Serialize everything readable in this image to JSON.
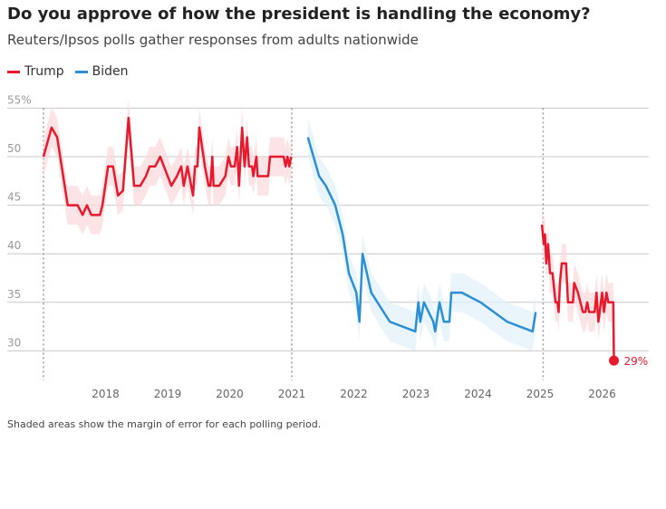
{
  "title": "Do you approve of how the president is handling the economy?",
  "subtitle": "Reuters/Ipsos polls gather responses from adults nationwide",
  "note": "Shaded areas show the margin of error for each polling period.",
  "chart_data": {
    "type": "line",
    "title": "Do you approve of how the president is handling the economy?",
    "ylim": [
      27,
      55
    ],
    "xlim": [
      2016.9,
      2026.5
    ],
    "y_ticks": [
      {
        "v": 55,
        "label": "55%"
      },
      {
        "v": 50,
        "label": "50"
      },
      {
        "v": 45,
        "label": "45"
      },
      {
        "v": 40,
        "label": "40"
      },
      {
        "v": 35,
        "label": "35"
      },
      {
        "v": 30,
        "label": "30"
      }
    ],
    "x_ticks": [
      "2018",
      "2019",
      "2020",
      "2021",
      "2022",
      "2023",
      "2024",
      "2025",
      "2026"
    ],
    "term_markers": [
      2017.0,
      2021.0,
      2025.05
    ],
    "grid": true,
    "legend_placement": "top-left",
    "end_label": "29%",
    "series": [
      {
        "name": "Trump",
        "color": "#e8192c",
        "band": "#fbd9dc",
        "segments": [
          [
            [
              2017.0,
              50
            ],
            [
              2017.13,
              53
            ],
            [
              2017.22,
              52
            ],
            [
              2017.39,
              45
            ],
            [
              2017.55,
              45
            ],
            [
              2017.63,
              44
            ],
            [
              2017.7,
              45
            ],
            [
              2017.77,
              44
            ],
            [
              2017.91,
              44
            ],
            [
              2017.95,
              45
            ],
            [
              2018.04,
              49
            ],
            [
              2018.12,
              49
            ],
            [
              2018.2,
              46
            ],
            [
              2018.28,
              46.5
            ],
            [
              2018.37,
              54
            ],
            [
              2018.46,
              47
            ],
            [
              2018.56,
              47
            ],
            [
              2018.65,
              48
            ],
            [
              2018.71,
              49
            ],
            [
              2018.8,
              49
            ],
            [
              2018.88,
              50
            ],
            [
              2018.94,
              49
            ],
            [
              2019.06,
              47
            ],
            [
              2019.15,
              48
            ],
            [
              2019.22,
              49
            ],
            [
              2019.26,
              47
            ],
            [
              2019.32,
              49
            ],
            [
              2019.41,
              46
            ],
            [
              2019.44,
              49
            ],
            [
              2019.48,
              49
            ],
            [
              2019.51,
              53
            ],
            [
              2019.6,
              49
            ],
            [
              2019.66,
              47
            ],
            [
              2019.69,
              47
            ],
            [
              2019.72,
              50
            ],
            [
              2019.74,
              47
            ],
            [
              2019.83,
              47
            ],
            [
              2019.93,
              48
            ],
            [
              2019.98,
              50
            ],
            [
              2020.02,
              49
            ],
            [
              2020.08,
              49
            ],
            [
              2020.12,
              51
            ],
            [
              2020.15,
              47
            ],
            [
              2020.2,
              53
            ],
            [
              2020.24,
              49
            ],
            [
              2020.28,
              52
            ],
            [
              2020.31,
              49
            ],
            [
              2020.36,
              49
            ],
            [
              2020.38,
              48
            ],
            [
              2020.43,
              50
            ],
            [
              2020.45,
              48
            ],
            [
              2020.62,
              48
            ],
            [
              2020.65,
              50
            ],
            [
              2020.87,
              50
            ],
            [
              2020.9,
              49
            ],
            [
              2020.93,
              50
            ],
            [
              2020.96,
              49
            ],
            [
              2020.99,
              50
            ]
          ],
          [
            [
              2025.03,
              43
            ],
            [
              2025.06,
              41
            ],
            [
              2025.08,
              42
            ],
            [
              2025.1,
              39
            ],
            [
              2025.13,
              41
            ],
            [
              2025.16,
              38
            ],
            [
              2025.2,
              38
            ],
            [
              2025.25,
              35
            ],
            [
              2025.28,
              35
            ],
            [
              2025.3,
              34
            ],
            [
              2025.32,
              37
            ],
            [
              2025.35,
              39
            ],
            [
              2025.42,
              39
            ],
            [
              2025.45,
              35
            ],
            [
              2025.53,
              35
            ],
            [
              2025.55,
              37
            ],
            [
              2025.61,
              36
            ],
            [
              2025.69,
              34
            ],
            [
              2025.73,
              34
            ],
            [
              2025.76,
              35
            ],
            [
              2025.79,
              34
            ],
            [
              2025.88,
              34
            ],
            [
              2025.91,
              36
            ],
            [
              2025.94,
              33
            ],
            [
              2026.0,
              36
            ],
            [
              2026.03,
              34
            ],
            [
              2026.07,
              36
            ],
            [
              2026.1,
              35
            ],
            [
              2026.18,
              35
            ],
            [
              2026.19,
              29
            ]
          ]
        ]
      },
      {
        "name": "Biden",
        "color": "#2a8fd4",
        "band": "#dff0f9",
        "segments": [
          [
            [
              2021.26,
              52
            ],
            [
              2021.44,
              48
            ],
            [
              2021.55,
              47
            ],
            [
              2021.7,
              45
            ],
            [
              2021.82,
              42
            ],
            [
              2021.92,
              38
            ],
            [
              2022.04,
              36
            ],
            [
              2022.09,
              33
            ],
            [
              2022.14,
              40
            ],
            [
              2022.28,
              36
            ],
            [
              2022.58,
              33
            ],
            [
              2022.99,
              32
            ],
            [
              2023.04,
              35
            ],
            [
              2023.07,
              33
            ],
            [
              2023.13,
              35
            ],
            [
              2023.28,
              33
            ],
            [
              2023.31,
              32
            ],
            [
              2023.38,
              35
            ],
            [
              2023.45,
              33
            ],
            [
              2023.54,
              33
            ],
            [
              2023.57,
              36
            ],
            [
              2023.74,
              36
            ],
            [
              2024.04,
              35
            ],
            [
              2024.47,
              33
            ],
            [
              2024.88,
              32
            ],
            [
              2024.93,
              34
            ]
          ]
        ]
      }
    ]
  }
}
